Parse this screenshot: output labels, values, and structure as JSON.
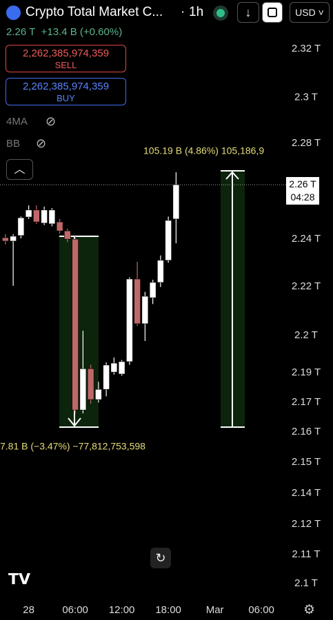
{
  "header": {
    "title": "Crypto Total Market C...",
    "interval": "1h",
    "currency": "USD",
    "price": "2.26 T",
    "change": "+13.4 B",
    "change_pct": "(+0.60%)"
  },
  "trade": {
    "sell_price": "2,262,385,974,359",
    "sell_label": "SELL",
    "buy_price": "2,262,385,974,359",
    "buy_label": "BUY"
  },
  "indicators": [
    "4MA",
    "BB"
  ],
  "chart_data": {
    "type": "candlestick",
    "x": [
      -3,
      -2,
      -1,
      0,
      1,
      2,
      3,
      4,
      5,
      6,
      7,
      8,
      9,
      10,
      11,
      12,
      13,
      14,
      15,
      16,
      17,
      18,
      19
    ],
    "open": [
      2.2423,
      2.2409,
      2.2432,
      2.2508,
      2.2537,
      2.2483,
      2.248,
      2.2488,
      2.2451,
      2.2417,
      2.1714,
      2.1884,
      2.1757,
      2.1799,
      2.187,
      2.1862,
      2.1913,
      2.2253,
      2.2069,
      2.2176,
      2.2239,
      2.233,
      2.25
    ],
    "high": [
      2.2437,
      2.2437,
      2.251,
      2.2556,
      2.2556,
      2.2551,
      2.2545,
      2.25,
      2.246,
      2.2429,
      2.204,
      2.19,
      2.183,
      2.191,
      2.193,
      2.192,
      2.226,
      2.2324,
      2.22,
      2.225,
      2.235,
      2.251,
      2.2692
    ],
    "low": [
      2.2395,
      2.2225,
      2.242,
      2.25,
      2.248,
      2.2475,
      2.247,
      2.244,
      2.2405,
      2.17,
      2.17,
      2.174,
      2.1745,
      2.177,
      2.186,
      2.1855,
      2.19,
      2.206,
      2.1998,
      2.215,
      2.222,
      2.232,
      2.24
    ],
    "close": [
      2.2409,
      2.2429,
      2.2505,
      2.2537,
      2.2488,
      2.2537,
      2.2537,
      2.2451,
      2.2417,
      2.1714,
      2.1884,
      2.1757,
      2.1799,
      2.1899,
      2.1907,
      2.1913,
      2.2253,
      2.2069,
      2.2182,
      2.2239,
      2.233,
      2.2494,
      2.2641
    ],
    "up_color": "#ffffff",
    "down_color": "#c06868",
    "xlim": [
      -3.7,
      33.1
    ],
    "xticks": [
      {
        "value": 0,
        "label": "28"
      },
      {
        "value": 6,
        "label": "06:00"
      },
      {
        "value": 12,
        "label": "12:00"
      },
      {
        "value": 18,
        "label": "18:00"
      },
      {
        "value": 24,
        "label": "Mar"
      },
      {
        "value": 30,
        "label": "06:00"
      }
    ],
    "ylim": [
      2.0935,
      2.3401
    ],
    "yticks": [
      {
        "value": 2.32,
        "label": "2.32 T"
      },
      {
        "value": 2.3,
        "label": "2.3 T"
      },
      {
        "value": 2.2812,
        "label": "2.28 T"
      },
      {
        "value": 2.2417,
        "label": "2.24 T"
      },
      {
        "value": 2.2222,
        "label": "2.22 T"
      },
      {
        "value": 2.2021,
        "label": "2.2 T"
      },
      {
        "value": 2.1867,
        "label": "2.19 T"
      },
      {
        "value": 2.1746,
        "label": "2.17 T"
      },
      {
        "value": 2.1624,
        "label": "2.16 T"
      },
      {
        "value": 2.1499,
        "label": "2.15 T"
      },
      {
        "value": 2.1371,
        "label": "2.14 T"
      },
      {
        "value": 2.1244,
        "label": "2.12 T"
      },
      {
        "value": 2.1119,
        "label": "2.11 T"
      },
      {
        "value": 2.1,
        "label": "2.1 T"
      }
    ],
    "last_price": {
      "value": 2.2641,
      "label": "2.26 T"
    },
    "countdown": "04:28",
    "annotations": [
      "105.19 B (4.86%) 105,186,9",
      "7.81 B (−3.47%) −77,812,753,598"
    ]
  }
}
